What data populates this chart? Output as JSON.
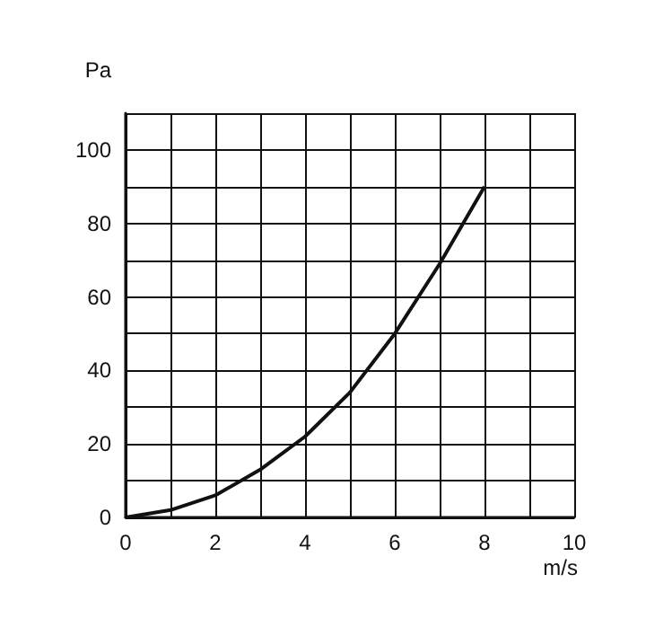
{
  "chart_data": {
    "type": "line",
    "xlabel": "m/s",
    "ylabel": "Pa",
    "x": [
      0,
      1,
      2,
      3,
      4,
      5,
      6,
      7,
      8
    ],
    "series": [
      {
        "color": "#111111",
        "values": [
          0,
          2,
          6,
          13,
          22,
          34,
          50,
          69,
          90
        ]
      }
    ],
    "xlim": [
      0,
      10
    ],
    "xticks": [
      0,
      {
        "value": 1,
        "label": null
      },
      2,
      {
        "value": 3,
        "label": null
      },
      4,
      {
        "value": 5,
        "label": null
      },
      6,
      {
        "value": 7,
        "label": null
      },
      8,
      {
        "value": 9,
        "label": null
      },
      10
    ],
    "ylim": [
      0,
      110
    ],
    "yticks": [
      0,
      {
        "value": 10,
        "label": null
      },
      20,
      {
        "value": 30,
        "label": null
      },
      40,
      {
        "value": 50,
        "label": null
      },
      60,
      {
        "value": 70,
        "label": null
      },
      80,
      {
        "value": 90,
        "label": null
      },
      100,
      {
        "value": 110,
        "label": null
      }
    ],
    "grid": true,
    "marker": "none",
    "line_style": "solid"
  }
}
